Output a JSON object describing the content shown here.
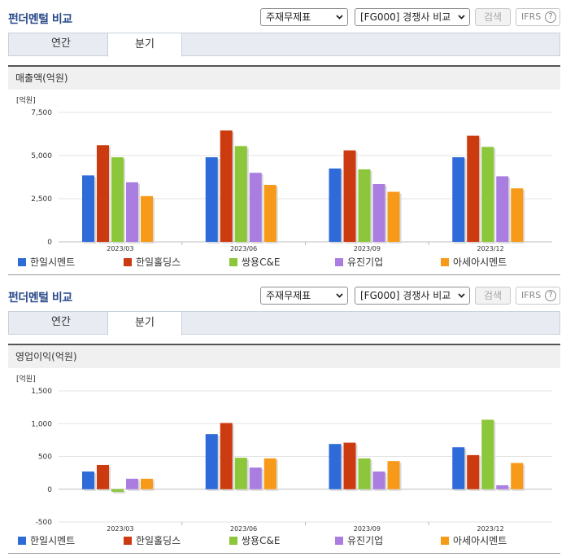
{
  "sections": [
    {
      "title": "펀더멘털 비교",
      "select_statement": "주재무제표",
      "select_compare": "[FG000] 경쟁사 비교",
      "search_label": "검색",
      "ifrs_label": "IFRS",
      "help_label": "?",
      "tabs": [
        {
          "label": "연간"
        },
        {
          "label": "분기"
        }
      ],
      "active_tab": "분기",
      "chart_heading": "매출액(억원)"
    },
    {
      "title": "펀더멘털 비교",
      "select_statement": "주재무제표",
      "select_compare": "[FG000] 경쟁사 비교",
      "search_label": "검색",
      "ifrs_label": "IFRS",
      "help_label": "?",
      "tabs": [
        {
          "label": "연간"
        },
        {
          "label": "분기"
        }
      ],
      "active_tab": "분기",
      "chart_heading": "영업이익(억원)"
    }
  ],
  "colors": {
    "한일시멘트": "#2e6bd8",
    "한일홀딩스": "#cc3a10",
    "쌍용C&E": "#8cc63a",
    "유진기업": "#a97ee0",
    "아세아시멘트": "#f79a1a"
  },
  "chart_data": [
    {
      "type": "bar",
      "title": "매출액(억원)",
      "unit_label": "[억원]",
      "categories": [
        "2023/03",
        "2023/06",
        "2023/09",
        "2023/12"
      ],
      "ylim": [
        0,
        7500
      ],
      "yticks": [
        0,
        2500,
        5000,
        7500
      ],
      "ytick_labels": [
        "0",
        "2,500",
        "5,000",
        "7,500"
      ],
      "legend_position": "bottom",
      "grid": true,
      "series": [
        {
          "name": "한일시멘트",
          "values": [
            3850,
            4900,
            4250,
            4900
          ]
        },
        {
          "name": "한일홀딩스",
          "values": [
            5600,
            6450,
            5300,
            6150
          ]
        },
        {
          "name": "쌍용C&E",
          "values": [
            4900,
            5550,
            4200,
            5500
          ]
        },
        {
          "name": "유진기업",
          "values": [
            3450,
            4000,
            3350,
            3800
          ]
        },
        {
          "name": "아세아시멘트",
          "values": [
            2650,
            3300,
            2900,
            3100
          ]
        }
      ]
    },
    {
      "type": "bar",
      "title": "영업이익(억원)",
      "unit_label": "[억원]",
      "categories": [
        "2023/03",
        "2023/06",
        "2023/09",
        "2023/12"
      ],
      "ylim": [
        -500,
        1500
      ],
      "yticks": [
        -500,
        0,
        500,
        1000,
        1500
      ],
      "ytick_labels": [
        "-500",
        "0",
        "500",
        "1,000",
        "1,500"
      ],
      "legend_position": "bottom",
      "grid": true,
      "series": [
        {
          "name": "한일시멘트",
          "values": [
            270,
            840,
            690,
            640
          ]
        },
        {
          "name": "한일홀딩스",
          "values": [
            370,
            1010,
            710,
            520
          ]
        },
        {
          "name": "쌍용C&E",
          "values": [
            -40,
            480,
            470,
            1060
          ]
        },
        {
          "name": "유진기업",
          "values": [
            160,
            330,
            270,
            60
          ]
        },
        {
          "name": "아세아시멘트",
          "values": [
            160,
            470,
            430,
            400
          ]
        }
      ]
    }
  ]
}
